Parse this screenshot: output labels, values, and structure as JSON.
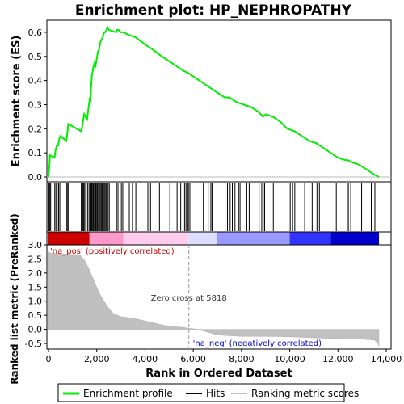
{
  "chart_data": {
    "type": "line",
    "title": "Enrichment plot: HP_NEPHROPATHY",
    "top_panel": {
      "ylabel": "Enrichment score (ES)",
      "ylim": [
        -0.02,
        0.65
      ],
      "yticks": [
        "0.0",
        "0.1",
        "0.2",
        "0.3",
        "0.4",
        "0.5",
        "0.6"
      ],
      "ytick_values": [
        0.0,
        0.1,
        0.2,
        0.3,
        0.4,
        0.5,
        0.6
      ],
      "series": [
        {
          "name": "Enrichment profile",
          "color": "#00ff00",
          "x": [
            0,
            40,
            60,
            250,
            290,
            340,
            400,
            450,
            500,
            740,
            780,
            820,
            1350,
            1400,
            1430,
            1480,
            1600,
            1650,
            1700,
            1740,
            1760,
            1800,
            1850,
            1900,
            1950,
            2000,
            2050,
            2100,
            2150,
            2200,
            2250,
            2300,
            2350,
            2400,
            2450,
            2500,
            2800,
            2850,
            2900,
            3000,
            3100,
            3300,
            3600,
            4000,
            4300,
            4700,
            5000,
            5300,
            5600,
            5818,
            6100,
            6400,
            6700,
            7000,
            7300,
            7500,
            7800,
            8100,
            8400,
            8700,
            8900,
            9000,
            9300,
            9600,
            9900,
            10200,
            10500,
            10800,
            11100,
            11400,
            11700,
            12000,
            12300,
            12400,
            12600,
            12900,
            13200,
            13500,
            13700
          ],
          "y": [
            0.0,
            0.05,
            0.09,
            0.08,
            0.11,
            0.13,
            0.13,
            0.16,
            0.17,
            0.15,
            0.18,
            0.22,
            0.19,
            0.21,
            0.23,
            0.26,
            0.24,
            0.28,
            0.32,
            0.31,
            0.36,
            0.42,
            0.45,
            0.47,
            0.46,
            0.49,
            0.52,
            0.53,
            0.56,
            0.57,
            0.58,
            0.6,
            0.6,
            0.61,
            0.62,
            0.61,
            0.6,
            0.61,
            0.61,
            0.6,
            0.6,
            0.59,
            0.58,
            0.55,
            0.53,
            0.5,
            0.48,
            0.46,
            0.44,
            0.43,
            0.41,
            0.39,
            0.37,
            0.35,
            0.33,
            0.33,
            0.31,
            0.3,
            0.29,
            0.27,
            0.25,
            0.26,
            0.25,
            0.23,
            0.2,
            0.19,
            0.17,
            0.15,
            0.14,
            0.12,
            0.1,
            0.08,
            0.07,
            0.07,
            0.06,
            0.05,
            0.03,
            0.01,
            0.0
          ]
        }
      ]
    },
    "hits_panel": {
      "hit_positions": [
        20,
        55,
        90,
        260,
        310,
        360,
        420,
        470,
        760,
        800,
        840,
        1360,
        1420,
        1460,
        1500,
        1550,
        1620,
        1680,
        1720,
        1760,
        1790,
        1820,
        1860,
        1880,
        1920,
        1960,
        2000,
        2030,
        2070,
        2110,
        2150,
        2190,
        2230,
        2270,
        2310,
        2350,
        2390,
        2430,
        2470,
        2520,
        2820,
        2880,
        3020,
        3080,
        3350,
        3480,
        3620,
        4120,
        4230,
        4600,
        5030,
        5330,
        5480,
        5640,
        5700,
        5760,
        5800,
        5860,
        6420,
        6620,
        6730,
        6780,
        7320,
        7420,
        7530,
        7620,
        7730,
        7880,
        7940,
        8220,
        8320,
        8730,
        8840,
        8900,
        8960,
        9320,
        10020,
        10120,
        10210,
        10620,
        10930,
        11130,
        11230,
        11930,
        12380,
        12430,
        12530,
        12980,
        13380,
        13530
      ],
      "heatmap_colors": [
        "#cc0000",
        "#ff0000",
        "#ff99cc",
        "#ffccee",
        "#ddddff",
        "#9999ff",
        "#3333ff",
        "#0000cc"
      ]
    },
    "bottom_panel": {
      "ylabel": "Ranked list metric (PreRanked)",
      "xlabel": "Rank in Ordered Dataset",
      "ylim": [
        -0.7,
        3.0
      ],
      "yticks": [
        "-0.5",
        "0.0",
        "0.5",
        "1.0",
        "1.5",
        "2.0",
        "2.5",
        "3.0"
      ],
      "ytick_values": [
        -0.5,
        0.0,
        0.5,
        1.0,
        1.5,
        2.0,
        2.5,
        3.0
      ],
      "xlim": [
        0,
        14000
      ],
      "xticks": [
        "0",
        "2,000",
        "4,000",
        "6,000",
        "8,000",
        "10,000",
        "12,000",
        "14,000"
      ],
      "xtick_values": [
        0,
        2000,
        4000,
        6000,
        8000,
        10000,
        12000,
        14000
      ],
      "metric_x": [
        0,
        100,
        1300,
        1500,
        1700,
        1900,
        2100,
        2300,
        2500,
        2700,
        3000,
        3500,
        4000,
        4500,
        5000,
        5500,
        5818,
        6200,
        6600,
        7000,
        8000,
        9000,
        10000,
        11000,
        12000,
        13000,
        13500,
        13650,
        13700
      ],
      "metric_y": [
        2.75,
        2.7,
        2.65,
        2.45,
        2.1,
        1.7,
        1.3,
        1.0,
        0.75,
        0.55,
        0.45,
        0.4,
        0.3,
        0.2,
        0.1,
        0.08,
        0.04,
        0.0,
        -0.1,
        -0.2,
        -0.25,
        -0.25,
        -0.26,
        -0.3,
        -0.33,
        -0.35,
        -0.38,
        -0.5,
        -0.6
      ],
      "zero_cross_label": "Zero cross at 5818",
      "zero_cross_x": 5818,
      "pos_label": "'na_pos' (positively correlated)",
      "neg_label": "'na_neg' (negatively correlated)",
      "pos_color": "#cc0000",
      "neg_color": "#0000cc"
    },
    "legend": {
      "position": "bottom",
      "items": [
        {
          "label": "Enrichment profile",
          "color": "#00ff00"
        },
        {
          "label": "Hits",
          "color": "#000000"
        },
        {
          "label": "Ranking metric scores",
          "color": "#c0c0c0"
        }
      ]
    }
  }
}
